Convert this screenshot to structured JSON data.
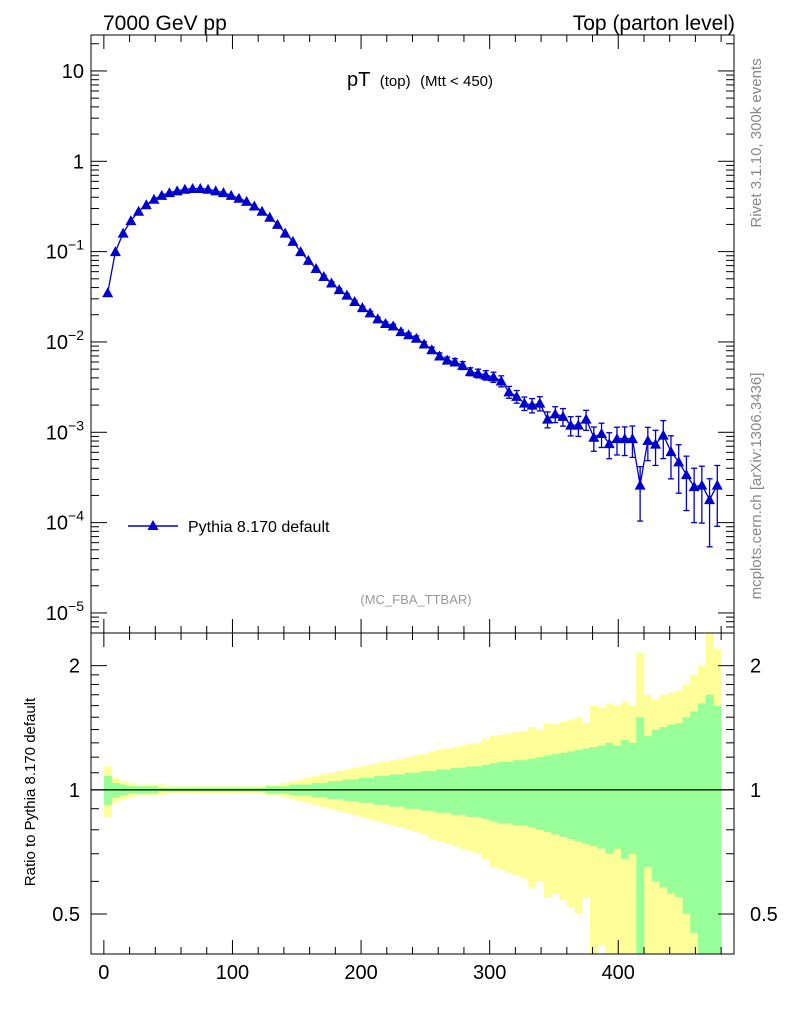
{
  "header": {
    "left_label": "7000 GeV pp",
    "right_label": "Top (parton level)"
  },
  "side_labels": {
    "rivet": "Rivet 3.1.10,  300k events",
    "mcplots": "mcplots.cern.ch [arXiv:1306.3436]"
  },
  "chart_data": [
    {
      "type": "line",
      "title_main": "pT",
      "title_sub1": "(top)",
      "title_sub2": "(Mtt < 450)",
      "analysis_tag": "(MC_FBA_TTBAR)",
      "yscale": "log",
      "xlim": [
        -10,
        490
      ],
      "ylim": [
        6e-06,
        25
      ],
      "ytick_labels": [
        {
          "base": "10",
          "exp": "",
          "value": 10
        },
        {
          "base": "1",
          "exp": "",
          "value": 1
        },
        {
          "base": "10",
          "exp": "−1",
          "value": 0.1
        },
        {
          "base": "10",
          "exp": "−2",
          "value": 0.01
        },
        {
          "base": "10",
          "exp": "−3",
          "value": 0.001
        },
        {
          "base": "10",
          "exp": "−4",
          "value": 0.0001
        },
        {
          "base": "10",
          "exp": "−5",
          "value": 1e-05
        }
      ],
      "legend": {
        "label": "Pythia 8.170 default",
        "color": "#0000cc",
        "position": "lower-left"
      },
      "series": [
        {
          "name": "Pythia 8.170 default",
          "color": "#0000cc",
          "x": [
            3,
            9,
            15,
            21,
            27,
            33,
            39,
            45,
            51,
            57,
            63,
            69,
            75,
            81,
            87,
            93,
            99,
            105,
            111,
            117,
            123,
            129,
            135,
            141,
            147,
            153,
            159,
            165,
            171,
            177,
            183,
            189,
            195,
            201,
            207,
            213,
            219,
            225,
            231,
            237,
            243,
            249,
            255,
            261,
            267,
            273,
            279,
            285,
            291,
            297,
            303,
            309,
            315,
            321,
            327,
            333,
            339,
            345,
            351,
            357,
            363,
            369,
            375,
            381,
            387,
            393,
            399,
            405,
            411,
            417,
            423,
            429,
            435,
            441,
            447,
            453,
            459,
            465,
            471,
            477
          ],
          "y": [
            0.035,
            0.1,
            0.16,
            0.22,
            0.28,
            0.33,
            0.38,
            0.42,
            0.45,
            0.47,
            0.49,
            0.5,
            0.5,
            0.49,
            0.47,
            0.45,
            0.42,
            0.39,
            0.36,
            0.32,
            0.28,
            0.24,
            0.2,
            0.16,
            0.13,
            0.1,
            0.08,
            0.065,
            0.053,
            0.045,
            0.038,
            0.033,
            0.028,
            0.024,
            0.021,
            0.018,
            0.016,
            0.015,
            0.013,
            0.012,
            0.011,
            0.0095,
            0.0082,
            0.007,
            0.0063,
            0.006,
            0.0055,
            0.0047,
            0.0045,
            0.0043,
            0.0041,
            0.0037,
            0.0028,
            0.0025,
            0.0021,
            0.002,
            0.0021,
            0.0014,
            0.0016,
            0.0015,
            0.0012,
            0.0012,
            0.0014,
            0.00088,
            0.00097,
            0.00075,
            0.00085,
            0.00085,
            0.00085,
            0.00026,
            0.00081,
            0.00074,
            0.00093,
            0.00061,
            0.00047,
            0.00034,
            0.00025,
            0.00026,
            0.00018,
            0.00026
          ],
          "err": [
            0.02,
            0.02,
            0.02,
            0.02,
            0.02,
            0.02,
            0.02,
            0.02,
            0.02,
            0.02,
            0.02,
            0.02,
            0.02,
            0.02,
            0.02,
            0.02,
            0.02,
            0.02,
            0.02,
            0.02,
            0.02,
            0.02,
            0.02,
            0.02,
            0.02,
            0.02,
            0.02,
            0.02,
            0.03,
            0.03,
            0.03,
            0.03,
            0.03,
            0.03,
            0.04,
            0.04,
            0.04,
            0.05,
            0.05,
            0.05,
            0.06,
            0.06,
            0.07,
            0.08,
            0.08,
            0.09,
            0.1,
            0.1,
            0.11,
            0.12,
            0.13,
            0.14,
            0.15,
            0.16,
            0.17,
            0.18,
            0.18,
            0.2,
            0.2,
            0.22,
            0.24,
            0.25,
            0.25,
            0.3,
            0.3,
            0.32,
            0.34,
            0.35,
            0.38,
            0.6,
            0.4,
            0.42,
            0.45,
            0.5,
            0.55,
            0.6,
            0.6,
            0.62,
            0.7,
            0.65
          ]
        }
      ]
    },
    {
      "type": "area",
      "ylabel": "Ratio to Pythia 8.170 default",
      "xlim": [
        -10,
        490
      ],
      "ylim": [
        0.4,
        2.4
      ],
      "yscale": "log",
      "reference_line": 1,
      "ytick_labels": [
        {
          "label": "2",
          "value": 2
        },
        {
          "label": "1",
          "value": 1
        },
        {
          "label": "0.5",
          "value": 0.5
        }
      ],
      "xtick_labels": [
        {
          "label": "0",
          "value": 0
        },
        {
          "label": "100",
          "value": 100
        },
        {
          "label": "200",
          "value": 200
        },
        {
          "label": "300",
          "value": 300
        },
        {
          "label": "400",
          "value": 400
        }
      ],
      "bands": [
        {
          "name": "stat-and-syst",
          "color": "#ffff99"
        },
        {
          "name": "stat",
          "color": "#99ff99"
        }
      ],
      "bin_lo": [
        0,
        6,
        12,
        18,
        24,
        30,
        36,
        42,
        48,
        54,
        60,
        66,
        72,
        78,
        84,
        90,
        96,
        102,
        108,
        114,
        120,
        126,
        132,
        138,
        144,
        150,
        156,
        162,
        168,
        174,
        180,
        186,
        192,
        198,
        204,
        210,
        216,
        222,
        228,
        234,
        240,
        246,
        252,
        258,
        264,
        270,
        276,
        282,
        288,
        294,
        300,
        306,
        312,
        318,
        324,
        330,
        336,
        342,
        348,
        354,
        360,
        366,
        372,
        378,
        384,
        390,
        396,
        402,
        408,
        414,
        420,
        426,
        432,
        438,
        444,
        450,
        456,
        462,
        468,
        474
      ],
      "bin_hi": [
        6,
        12,
        18,
        24,
        30,
        36,
        42,
        48,
        54,
        60,
        66,
        72,
        78,
        84,
        90,
        96,
        102,
        108,
        114,
        120,
        126,
        132,
        138,
        144,
        150,
        156,
        162,
        168,
        174,
        180,
        186,
        192,
        198,
        204,
        210,
        216,
        222,
        228,
        234,
        240,
        246,
        252,
        258,
        264,
        270,
        276,
        282,
        288,
        294,
        300,
        306,
        312,
        318,
        324,
        330,
        336,
        342,
        348,
        354,
        360,
        366,
        372,
        378,
        384,
        390,
        396,
        402,
        408,
        414,
        420,
        426,
        432,
        438,
        444,
        450,
        456,
        462,
        468,
        474,
        480
      ],
      "yellow_rel": [
        0.14,
        0.07,
        0.05,
        0.04,
        0.03,
        0.03,
        0.03,
        0.03,
        0.02,
        0.02,
        0.02,
        0.02,
        0.02,
        0.02,
        0.02,
        0.02,
        0.02,
        0.02,
        0.02,
        0.02,
        0.02,
        0.03,
        0.03,
        0.04,
        0.05,
        0.06,
        0.07,
        0.08,
        0.09,
        0.1,
        0.11,
        0.12,
        0.13,
        0.14,
        0.15,
        0.16,
        0.17,
        0.18,
        0.19,
        0.2,
        0.21,
        0.22,
        0.24,
        0.25,
        0.26,
        0.27,
        0.28,
        0.29,
        0.3,
        0.32,
        0.35,
        0.36,
        0.37,
        0.38,
        0.39,
        0.42,
        0.4,
        0.45,
        0.44,
        0.46,
        0.48,
        0.5,
        0.45,
        0.6,
        0.58,
        0.62,
        0.6,
        0.64,
        0.6,
        0.65,
        0.7,
        0.66,
        0.7,
        0.72,
        0.74,
        0.8,
        0.9,
        1.0,
        1.2,
        1.0
      ],
      "green_rel": [
        0.08,
        0.04,
        0.03,
        0.02,
        0.02,
        0.02,
        0.02,
        0.01,
        0.01,
        0.01,
        0.01,
        0.01,
        0.01,
        0.01,
        0.01,
        0.01,
        0.01,
        0.01,
        0.01,
        0.01,
        0.01,
        0.02,
        0.02,
        0.02,
        0.03,
        0.03,
        0.03,
        0.04,
        0.04,
        0.05,
        0.05,
        0.06,
        0.06,
        0.07,
        0.07,
        0.08,
        0.08,
        0.09,
        0.09,
        0.1,
        0.1,
        0.11,
        0.11,
        0.12,
        0.12,
        0.13,
        0.13,
        0.14,
        0.14,
        0.15,
        0.16,
        0.17,
        0.17,
        0.18,
        0.18,
        0.19,
        0.2,
        0.21,
        0.22,
        0.23,
        0.24,
        0.25,
        0.26,
        0.27,
        0.28,
        0.3,
        0.28,
        0.32,
        0.3,
        0.33,
        0.35,
        0.4,
        0.42,
        0.44,
        0.45,
        0.5,
        0.55,
        0.58,
        0.62,
        0.7
      ],
      "yellow_edges": [
        {
          "bin": 69,
          "lo": 0.38,
          "hi": 2.15
        },
        {
          "bin": 78,
          "lo": 0.36,
          "hi": 2.4
        },
        {
          "bin": 79,
          "lo": 0.36,
          "hi": 2.2
        }
      ],
      "green_edges": [
        {
          "bin": 69,
          "lo": 0.37,
          "hi": 1.5
        },
        {
          "bin": 77,
          "lo": 0.37,
          "hi": 1.62
        },
        {
          "bin": 78,
          "lo": 0.37,
          "hi": 1.7
        },
        {
          "bin": 79,
          "lo": 0.37,
          "hi": 1.6
        }
      ]
    }
  ]
}
